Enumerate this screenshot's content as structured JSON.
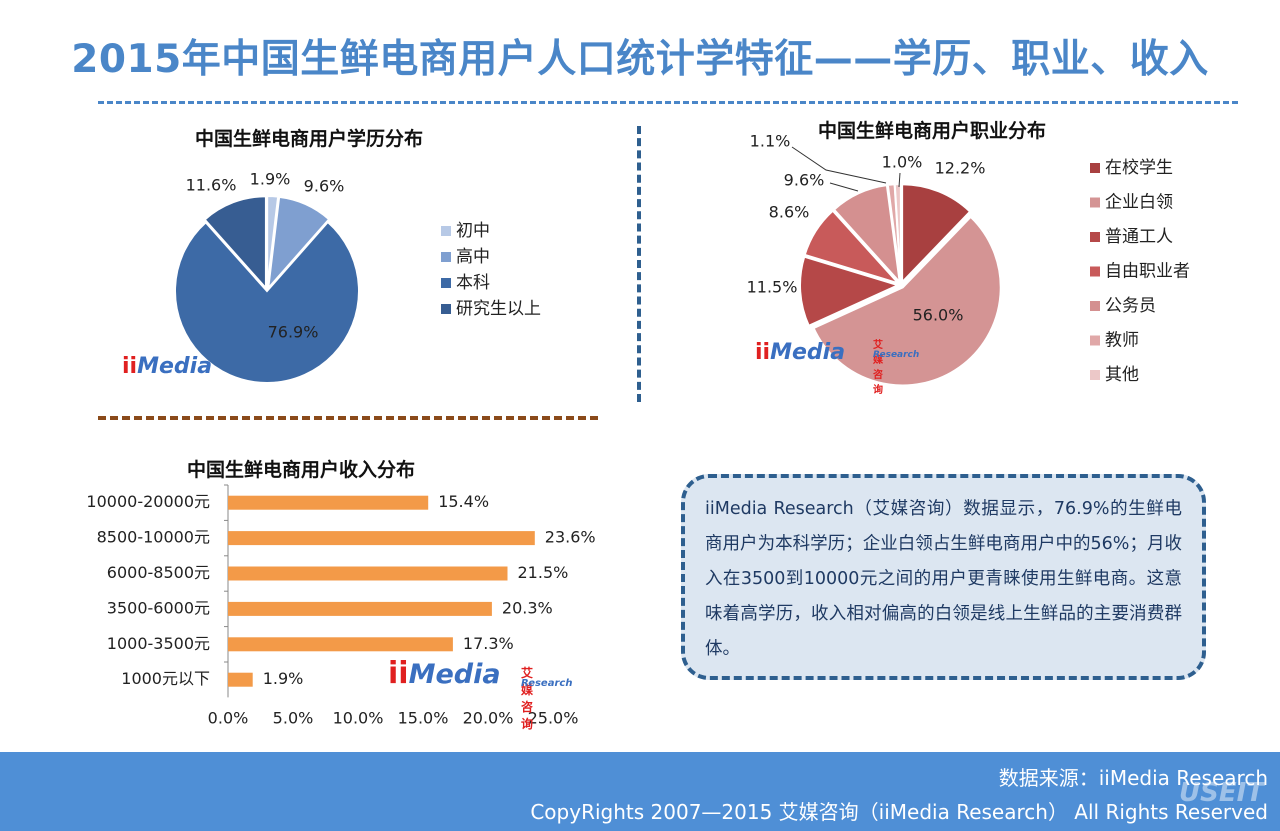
{
  "title": "2015年中国生鲜电商用户人口统计学特征——学历、职业、收入",
  "chart_data": [
    {
      "type": "pie",
      "title": "中国生鲜电商用户学历分布",
      "categories": [
        "初中",
        "高中",
        "本科",
        "研究生以上"
      ],
      "values": [
        1.9,
        9.6,
        76.9,
        11.6
      ],
      "value_labels": [
        "1.9%",
        "9.6%",
        "76.9%",
        "11.6%"
      ],
      "colors": [
        "#b7c9e6",
        "#7f9fd0",
        "#3d6aa6",
        "#375d92"
      ],
      "legend": "right"
    },
    {
      "type": "pie",
      "title": "中国生鲜电商用户职业分布",
      "categories": [
        "在校学生",
        "企业白领",
        "普通工人",
        "自由职业者",
        "公务员",
        "教师",
        "其他"
      ],
      "values": [
        12.2,
        56.0,
        11.5,
        8.6,
        9.6,
        1.1,
        1.0
      ],
      "value_labels": [
        "12.2%",
        "56.0%",
        "11.5%",
        "8.6%",
        "9.6%",
        "1.1%",
        "1.0%"
      ],
      "colors": [
        "#a84040",
        "#d49494",
        "#b54848",
        "#c85a5a",
        "#d49090",
        "#e0a8a8",
        "#ecc8c8"
      ],
      "legend": "right"
    },
    {
      "type": "bar",
      "orientation": "horizontal",
      "title": "中国生鲜电商用户收入分布",
      "categories": [
        "10000-20000元",
        "8500-10000元",
        "6000-8500元",
        "3500-6000元",
        "1000-3500元",
        "1000元以下"
      ],
      "values": [
        15.4,
        23.6,
        21.5,
        20.3,
        17.3,
        1.9
      ],
      "value_labels": [
        "15.4%",
        "23.6%",
        "21.5%",
        "20.3%",
        "17.3%",
        "1.9%"
      ],
      "xlim": [
        0,
        25
      ],
      "xticks": [
        "0.0%",
        "5.0%",
        "10.0%",
        "15.0%",
        "20.0%",
        "25.0%"
      ],
      "color": "#f39a48"
    }
  ],
  "logo": {
    "ii": "ii",
    "media": "Media",
    "cn": "艾媒咨询",
    "research": "Research"
  },
  "summary": "iiMedia Research（艾媒咨询）数据显示，76.9%的生鲜电商用户为本科学历；企业白领占生鲜电商用户中的56%；月收入在3500到10000元之间的用户更青睐使用生鲜电商。这意味着高学历，收入相对偏高的白领是线上生鲜品的主要消费群体。",
  "footer": {
    "source": "数据来源：iiMedia Research",
    "copyright": "CopyRights 2007—2015 艾媒咨询（iiMedia Research） All Rights Reserved",
    "watermark": "USEIT"
  }
}
